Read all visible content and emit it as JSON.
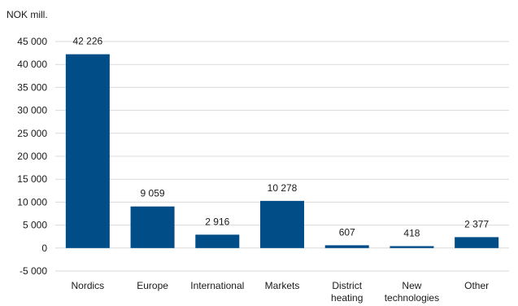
{
  "chart_data": {
    "type": "bar",
    "ylabel": "NOK mill.",
    "categories": [
      [
        "Nordics"
      ],
      [
        "Europe"
      ],
      [
        "International"
      ],
      [
        "Markets"
      ],
      [
        "District",
        "heating"
      ],
      [
        "New",
        "technologies"
      ],
      [
        "Other"
      ]
    ],
    "values": [
      42226,
      9059,
      2916,
      10278,
      607,
      418,
      2377
    ],
    "value_labels": [
      "42 226",
      "9 059",
      "2 916",
      "10 278",
      "607",
      "418",
      "2 377"
    ],
    "ylim": [
      -5000,
      45000
    ],
    "yticks": [
      -5000,
      0,
      5000,
      10000,
      15000,
      20000,
      25000,
      30000,
      35000,
      40000,
      45000
    ],
    "ytick_labels": [
      "-5 000",
      "0",
      "5 000",
      "10 000",
      "15 000",
      "20 000",
      "25 000",
      "30 000",
      "35 000",
      "40 000",
      "45 000"
    ],
    "grid": true,
    "bar_color": "#004d87",
    "grid_color": "#d9d9d9"
  }
}
